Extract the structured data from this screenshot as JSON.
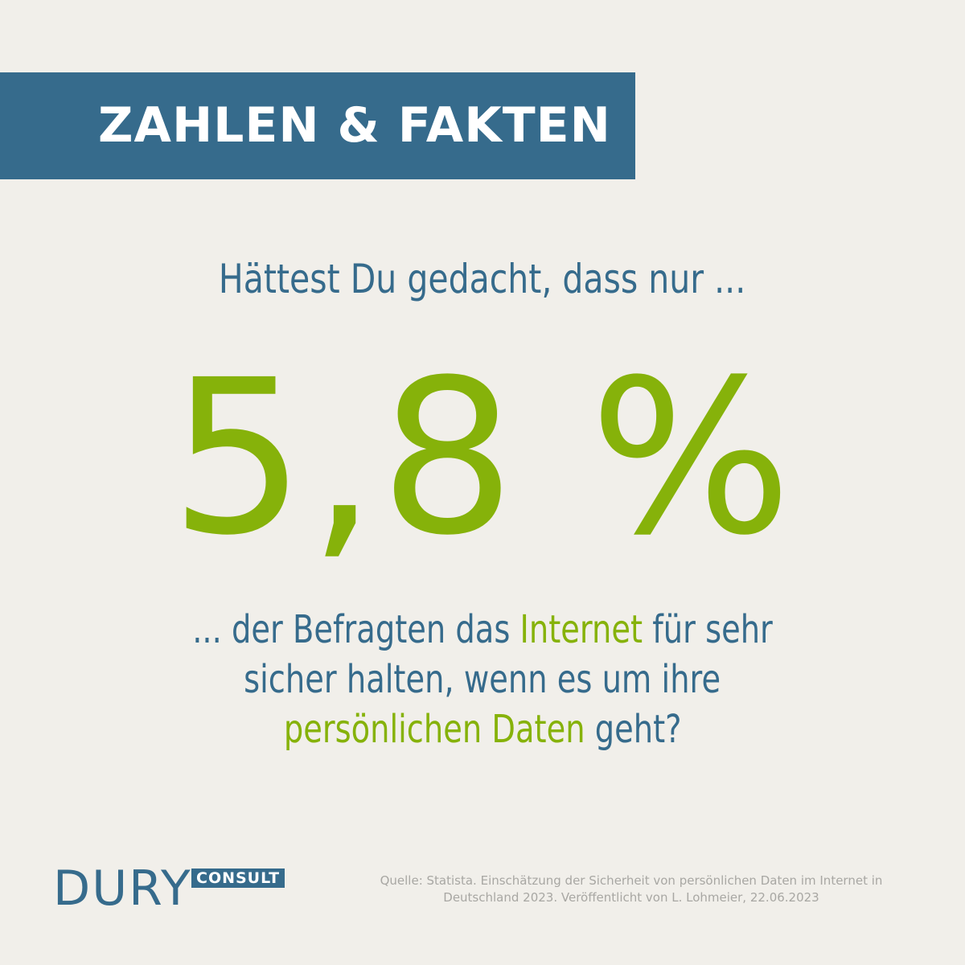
{
  "banner": {
    "title": "ZAHLEN & FAKTEN"
  },
  "question": "Hättest Du gedacht, dass nur ...",
  "stat": "5,8 %",
  "body": {
    "l1a": "... der Befragten das ",
    "l1b": "Internet",
    "l1c": " für sehr",
    "l2": "sicher halten, wenn es um ihre",
    "l3a": "persönlichen Daten",
    "l3b": " geht?"
  },
  "logo": {
    "name": "DURY",
    "sub": "CONSULT"
  },
  "source": {
    "line1": "Quelle: Statista. Einschätzung der Sicherheit von persönlichen Daten im Internet in",
    "line2": "Deutschland 2023. Veröffentlicht von L. Lohmeier, 22.06.2023"
  },
  "colors": {
    "background": "#f1efea",
    "blue": "#366b8c",
    "green": "#86b20a",
    "source_gray": "#a8a7a3"
  }
}
